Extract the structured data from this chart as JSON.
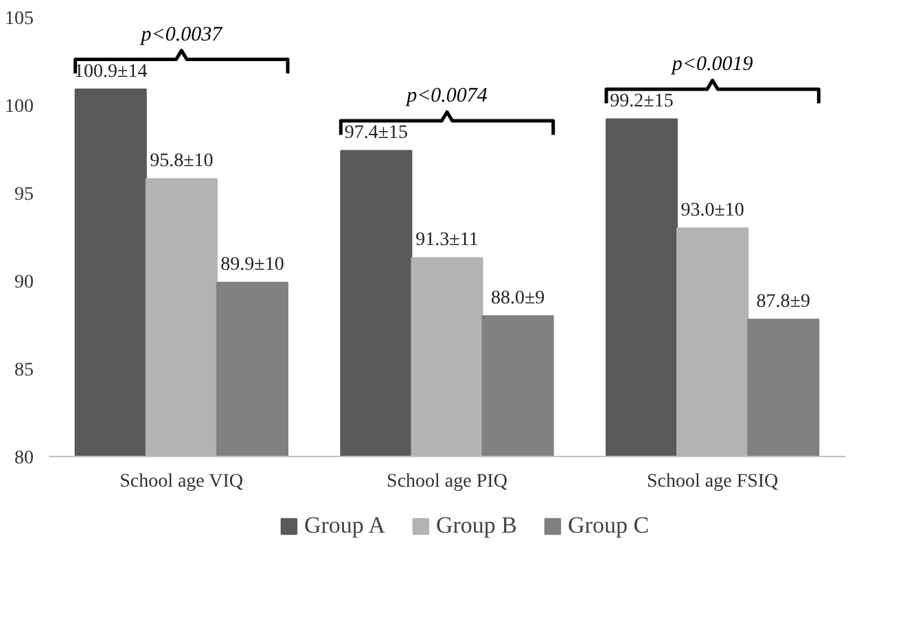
{
  "chart_data": {
    "type": "bar",
    "categories": [
      "School age VIQ",
      "School age PIQ",
      "School age FSIQ"
    ],
    "series": [
      {
        "name": "Group A",
        "color": "#595959",
        "values": [
          100.9,
          97.4,
          99.2
        ],
        "value_labels": [
          "100.9±14",
          "97.4±15",
          "99.2±15"
        ]
      },
      {
        "name": "Group B",
        "color": "#b3b3b3",
        "values": [
          95.8,
          91.3,
          93.0
        ],
        "value_labels": [
          "95.8±10",
          "91.3±11",
          "93.0±10"
        ]
      },
      {
        "name": "Group C",
        "color": "#808080",
        "values": [
          89.9,
          88.0,
          87.8
        ],
        "value_labels": [
          "89.9±10",
          "88.0±9",
          "87.8±9"
        ]
      }
    ],
    "ylim": [
      80,
      105
    ],
    "yticks": [
      80,
      85,
      90,
      95,
      100,
      105
    ],
    "grid": false,
    "legend": "bottom",
    "annotations": [
      "p<0.0037",
      "p<0.0074",
      "p<0.0019"
    ]
  }
}
